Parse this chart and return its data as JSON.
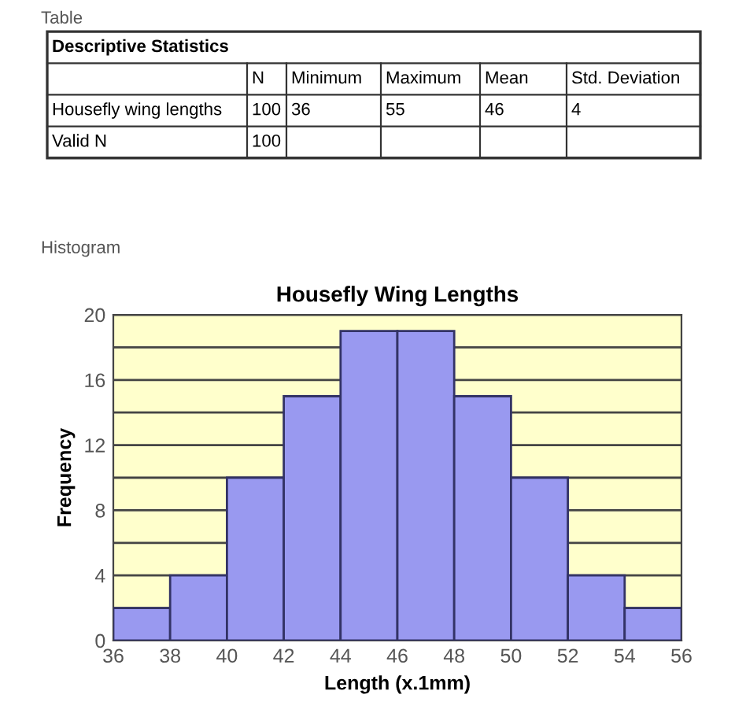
{
  "chart_data": [
    {
      "type": "other",
      "title": "Descriptive Statistics",
      "annotations": [
        "Table"
      ],
      "categories": [
        null,
        "N",
        "Minimum",
        "Maximum",
        "Mean",
        "Std. Deviation"
      ],
      "y_categories": [
        "Housefly wing lengths",
        "Valid N"
      ],
      "cell_labels": [
        [
          "100",
          "36",
          "55",
          "46",
          "4"
        ],
        [
          "100",
          null,
          null,
          null,
          null
        ]
      ]
    },
    {
      "type": "histogram",
      "title": "Housefly Wing Lengths",
      "xlabel": "Length (x.1mm)",
      "ylabel": "Frequency",
      "annotations": [
        "Histogram"
      ],
      "bins": [
        36,
        38,
        40,
        42,
        44,
        46,
        48,
        50,
        52,
        54,
        56
      ],
      "values": [
        2,
        4,
        10,
        15,
        19,
        19,
        15,
        10,
        4,
        2
      ],
      "color": "#9999f0",
      "xlim": [
        36,
        56
      ],
      "xticks": [
        36,
        38,
        40,
        42,
        44,
        46,
        48,
        50,
        52,
        54,
        56
      ],
      "ylim": [
        0,
        20
      ],
      "yticks": [
        0,
        {
          "value": 2,
          "label": null
        },
        4,
        {
          "value": 6,
          "label": null
        },
        8,
        {
          "value": 10,
          "label": null
        },
        12,
        {
          "value": 14,
          "label": null
        },
        16,
        {
          "value": 18,
          "label": null
        },
        20
      ],
      "bands": [
        {
          "axis": "y",
          "from": 0,
          "to": 20,
          "color": "#ffffcc"
        }
      ],
      "grid": "y",
      "legend": false
    }
  ]
}
